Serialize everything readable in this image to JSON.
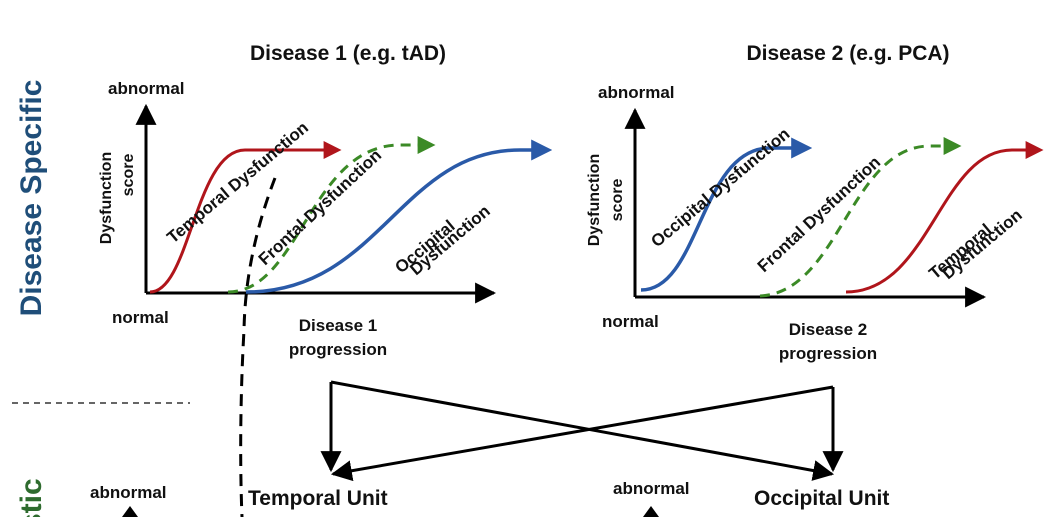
{
  "panel1": {
    "title": "Disease 1 (e.g. tAD)",
    "y_top": "abnormal",
    "y_bottom": "normal",
    "y_axis_line1": "Dysfunction",
    "y_axis_line2": "score",
    "x_axis_line1": "Disease 1",
    "x_axis_line2": "progression",
    "curves": {
      "temporal": "Temporal Dysfunction",
      "frontal": "Frontal Dysfunction",
      "occipital_line1": "Occipital",
      "occipital_line2": "Dysfunction"
    }
  },
  "panel2": {
    "title": "Disease 2 (e.g. PCA)",
    "y_top": "abnormal",
    "y_bottom": "normal",
    "y_axis_line1": "Dysfunction",
    "y_axis_line2": "score",
    "x_axis_line1": "Disease 2",
    "x_axis_line2": "progression",
    "curves": {
      "occipital": "Occipital Dysfunction",
      "frontal": "Frontal Dysfunction",
      "temporal_line1": "Temporal",
      "temporal_line2": "Dysfunction"
    }
  },
  "side_labels": {
    "disease_specific": "Disease Specific",
    "lower_partial": "stic"
  },
  "lower": {
    "left_abnormal": "abnormal",
    "right_abnormal": "abnormal",
    "temporal_unit": "Temporal Unit",
    "occipital_unit": "Occipital Unit"
  },
  "colors": {
    "temporal": "#b0151b",
    "frontal": "#3b8a26",
    "occipital": "#2a5aa8",
    "section_blue": "#1f4e79",
    "section_green": "#2e6b2e"
  }
}
